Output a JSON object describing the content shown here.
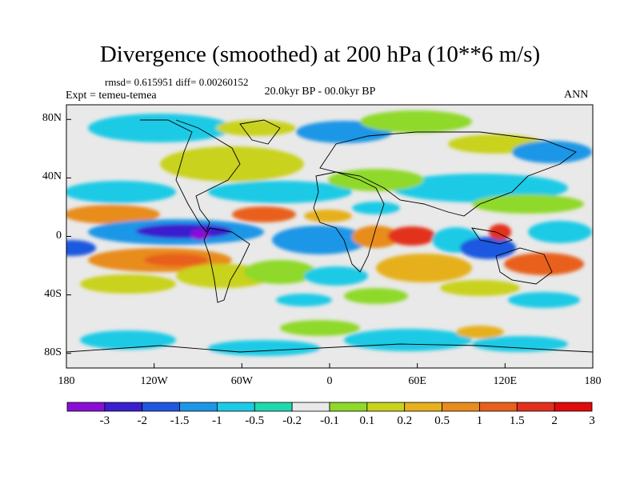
{
  "title": "Divergence (smoothed) at 200 hPa (10**6 m/s)",
  "stats_line": "rmsd= 0.615951 diff= 0.00260152",
  "experiment_line": "Expt = temeu-temea",
  "period_line": "20.0kyr BP - 00.0kyr BP",
  "season": "ANN",
  "y_ticks": [
    {
      "label": "80N",
      "lat": 80
    },
    {
      "label": "40N",
      "lat": 40
    },
    {
      "label": "0",
      "lat": 0
    },
    {
      "label": "40S",
      "lat": -40
    },
    {
      "label": "80S",
      "lat": -80
    }
  ],
  "x_ticks": [
    {
      "label": "180",
      "lon": -180
    },
    {
      "label": "120W",
      "lon": -120
    },
    {
      "label": "60W",
      "lon": -60
    },
    {
      "label": "0",
      "lon": 0
    },
    {
      "label": "60E",
      "lon": 60
    },
    {
      "label": "120E",
      "lon": 120
    },
    {
      "label": "180",
      "lon": 180
    }
  ],
  "colorbar": {
    "boundary_labels": [
      "-3",
      "-2",
      "-1.5",
      "-1",
      "-0.5",
      "-0.2",
      "-0.1",
      "0.1",
      "0.2",
      "0.5",
      "1",
      "1.5",
      "2",
      "3"
    ],
    "colors": [
      "#8a0fd6",
      "#3a1fcf",
      "#1e58e0",
      "#1e96e6",
      "#1ecae6",
      "#21d9ae",
      "#e9e9e9",
      "#8fd92a",
      "#c9d21e",
      "#e6b01e",
      "#e88c1e",
      "#e8601e",
      "#e3301e",
      "#e00b0b"
    ]
  }
}
